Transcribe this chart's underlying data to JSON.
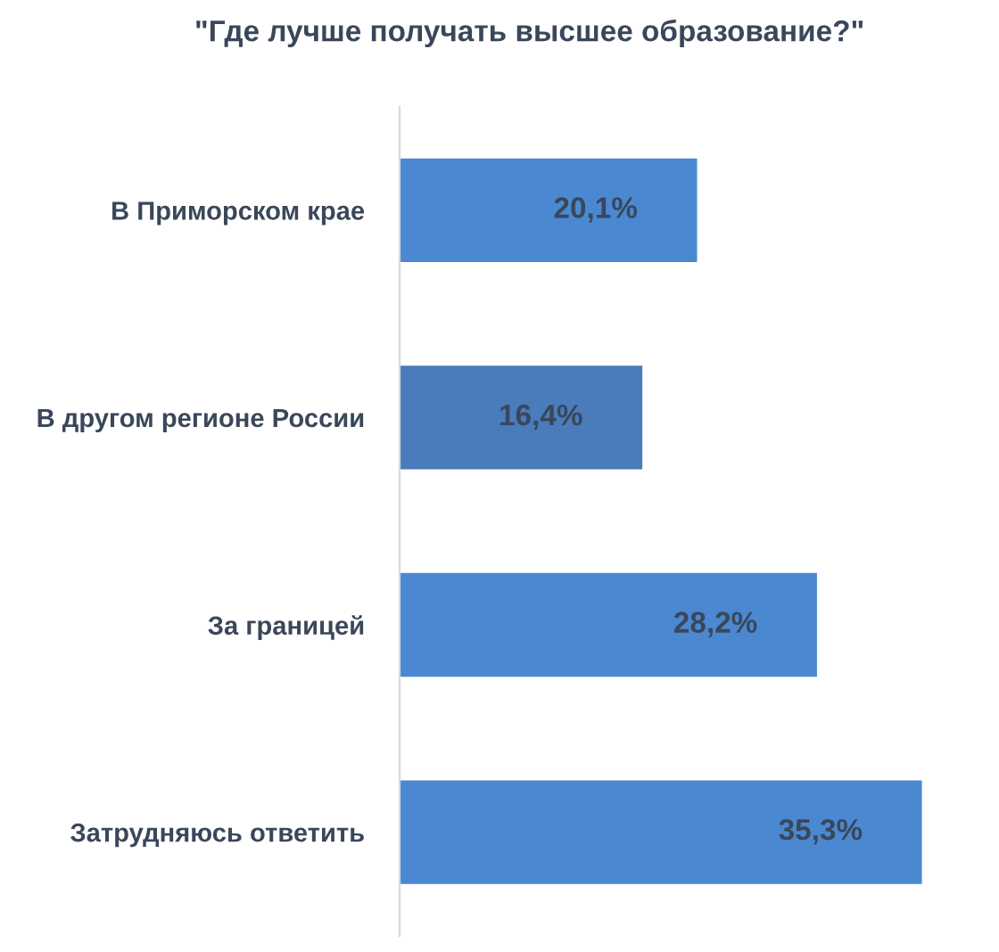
{
  "chart_data": {
    "type": "bar",
    "orientation": "horizontal",
    "title": "\"Где лучше получать высшее образование?\"",
    "categories": [
      "В Приморском крае",
      "В другом регионе России",
      "За границей",
      "Затрудняюсь ответить"
    ],
    "values": [
      20.1,
      16.4,
      28.2,
      35.3
    ],
    "colors": [
      "#4a89d2",
      "#4a7cbc",
      "#4a89d2",
      "#4a89d2"
    ],
    "value_labels": [
      "20,1%",
      "16,4%",
      "28,2%",
      "35,3%"
    ],
    "grid": false,
    "legend": false
  }
}
